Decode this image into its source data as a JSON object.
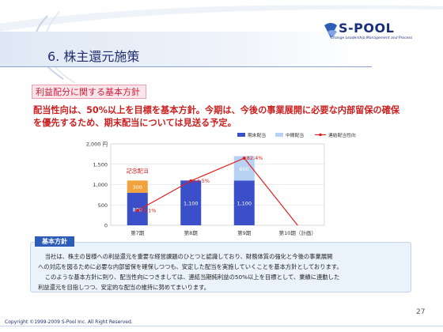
{
  "header": {
    "logo_text": "S-POOL",
    "logo_sub": "Change Leadership,Management and Process",
    "title": "6. 株主還元施策"
  },
  "section_tag": "利益配分に関する基本方針",
  "lead_text": "配当性向は、50%以上を目標を基本方針。今期は、今後の事業展開に必要な内部留保の確保を優先するため、期末配当については見送る予定。",
  "chart_data": {
    "type": "bar",
    "categories": [
      "第7期",
      "第8期",
      "第9期",
      "第10期（計画）"
    ],
    "series": [
      {
        "name": "期末配当",
        "values": [
          800,
          1100,
          1100,
          0
        ],
        "color": "#3a4fc8"
      },
      {
        "name": "中間配当",
        "values": [
          0,
          0,
          600,
          0
        ],
        "color": "#b7d2f2"
      },
      {
        "name": "記念配当",
        "values": [
          300,
          0,
          0,
          0
        ],
        "color": "#f2a23c"
      }
    ],
    "line": {
      "name": "連結配当性向",
      "values": [
        18.1,
        54.5,
        82.4,
        0
      ],
      "labels": [
        "18.1%",
        "54.5%",
        "82.4%",
        ""
      ],
      "color": "#e02020"
    },
    "ylim": [
      0,
      2000
    ],
    "y_ticks": [
      "0",
      "500",
      "1,000",
      "1,500",
      "2,000"
    ],
    "y_unit": "円",
    "bar_labels": {
      "special": [
        "300",
        "",
        "",
        ""
      ],
      "final": [
        "800",
        "1,100",
        "1,100",
        ""
      ],
      "interim": [
        "",
        "",
        "600",
        ""
      ]
    },
    "annotation": "記念配当",
    "legend": [
      "期末配当",
      "中間配当",
      "連結配当性向"
    ],
    "legend_position": "top-right"
  },
  "basic_policy": {
    "tag": "基本方針",
    "text1": "当社は、株主の皆様への利益還元を重要な経営課題のひとつと認識しており、財務体質の強化と今後の事業展開",
    "text2": "への対応を図るために必要な内部留保を確保しつつも、安定した配当を実施していくことを基本方針としております。",
    "text3": "このような基本方針に則り、配当性向につきましては、連結当期純利益の50%以上を目標として、業績に連動した",
    "text4": "利益還元を目指しつつ、安定的な配当の維持に努めてまいります。"
  },
  "page_number": "27",
  "copyright": "Copyright ©1999-2009 S-Pool Inc. All Right Reserved."
}
